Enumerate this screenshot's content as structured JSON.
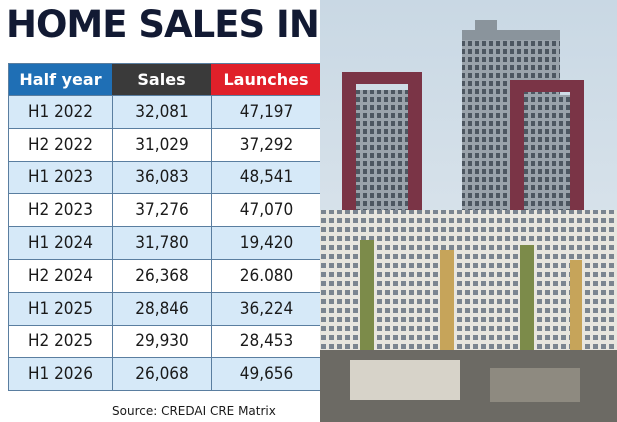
{
  "title": "HOME SALES IN HYD",
  "source": "Source: CREDAI CRE Matrix",
  "colors": {
    "half_year_header": "#1f6fb5",
    "sales_header": "#3a3a3a",
    "launches_header": "#e0202a"
  },
  "chart_data": {
    "type": "table",
    "title": "HOME SALES IN HYD",
    "columns": [
      "Half year",
      "Sales",
      "Launches"
    ],
    "rows": [
      [
        "H1 2022",
        "32,081",
        "47,197"
      ],
      [
        "H2 2022",
        "31,029",
        "37,292"
      ],
      [
        "H1 2023",
        "36,083",
        "48,541"
      ],
      [
        "H2 2023",
        "37,276",
        "47,070"
      ],
      [
        "H1 2024",
        "31,780",
        "19,420"
      ],
      [
        "H2 2024",
        "26,368",
        "26.080"
      ],
      [
        "H1 2025",
        "28,846",
        "36,224"
      ],
      [
        "H2 2025",
        "29,930",
        "28,453"
      ],
      [
        "H1 2026",
        "26,068",
        "49,656"
      ]
    ]
  }
}
